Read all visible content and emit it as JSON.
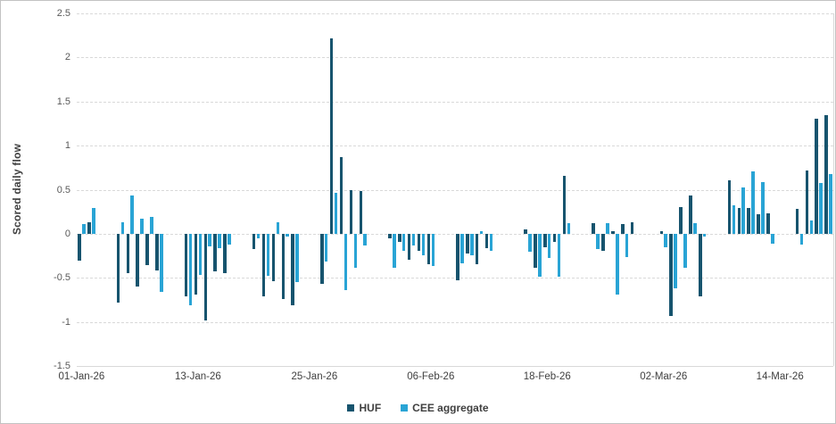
{
  "figure": {
    "y_axis_title": "Scored daily flow",
    "y_tick_labels": [
      "2.5",
      "2",
      "1.5",
      "1",
      "0.5",
      "0",
      "-0.5",
      "-1",
      "-1.5"
    ],
    "x_tick_labels": [
      "01-Jan-26",
      "13-Jan-26",
      "25-Jan-26",
      "06-Feb-26",
      "18-Feb-26",
      "02-Mar-26",
      "14-Mar-26"
    ],
    "colors": {
      "huf": "#17546E",
      "cee": "#29A4D5",
      "gridline": "#D9D9D9",
      "y_tick_text": "#595959",
      "x_tick_text": "#404040",
      "background": "#FFFFFF"
    }
  },
  "chart_data": {
    "type": "bar",
    "title": "",
    "xlabel": "",
    "ylabel": "Scored daily flow",
    "ylim": [
      -1.5,
      2.5
    ],
    "gridline_step": 0.5,
    "grid": "horizontal-dashed",
    "legend_position": "bottom-center",
    "x_tick_labels": [
      "01-Jan-26",
      "13-Jan-26",
      "25-Jan-26",
      "06-Feb-26",
      "18-Feb-26",
      "02-Mar-26",
      "14-Mar-26"
    ],
    "categories": [
      "01-Jan-26",
      "02-Jan-26",
      "05-Jan-26",
      "06-Jan-26",
      "07-Jan-26",
      "08-Jan-26",
      "09-Jan-26",
      "12-Jan-26",
      "13-Jan-26",
      "14-Jan-26",
      "15-Jan-26",
      "16-Jan-26",
      "19-Jan-26",
      "20-Jan-26",
      "21-Jan-26",
      "22-Jan-26",
      "23-Jan-26",
      "26-Jan-26",
      "27-Jan-26",
      "28-Jan-26",
      "29-Jan-26",
      "30-Jan-26",
      "02-Feb-26",
      "03-Feb-26",
      "04-Feb-26",
      "05-Feb-26",
      "06-Feb-26",
      "09-Feb-26",
      "10-Feb-26",
      "11-Feb-26",
      "12-Feb-26",
      "13-Feb-26",
      "16-Feb-26",
      "17-Feb-26",
      "18-Feb-26",
      "19-Feb-26",
      "20-Feb-26",
      "23-Feb-26",
      "24-Feb-26",
      "25-Feb-26",
      "26-Feb-26",
      "27-Feb-26",
      "02-Mar-26",
      "03-Mar-26",
      "04-Mar-26",
      "05-Mar-26",
      "06-Mar-26",
      "09-Mar-26",
      "10-Mar-26",
      "11-Mar-26",
      "12-Mar-26",
      "13-Mar-26",
      "16-Mar-26",
      "17-Mar-26",
      "18-Mar-26",
      "19-Mar-26"
    ],
    "series": [
      {
        "name": "HUF",
        "color": "#17546E",
        "values": [
          -0.31,
          0.13,
          -0.78,
          -0.45,
          -0.6,
          -0.36,
          -0.42,
          -0.71,
          -0.69,
          -0.98,
          -0.43,
          -0.45,
          -0.17,
          -0.71,
          -0.54,
          -0.74,
          -0.81,
          -0.57,
          2.22,
          0.87,
          0.5,
          0.48,
          -0.05,
          -0.09,
          -0.29,
          -0.19,
          -0.35,
          -0.53,
          -0.22,
          -0.35,
          -0.16,
          0,
          0.05,
          -0.39,
          -0.15,
          -0.09,
          0.66,
          0.12,
          -0.19,
          0.03,
          0.11,
          0.13,
          0.03,
          -0.93,
          0.3,
          0.43,
          -0.71,
          0.61,
          0.29,
          0.29,
          0.22,
          0.23,
          0.28,
          0.72,
          1.31,
          1.35
        ]
      },
      {
        "name": "CEE aggregate",
        "color": "#29A4D5",
        "values": [
          0.11,
          0.29,
          0.13,
          0.43,
          0.17,
          0.19,
          -0.66,
          -0.81,
          -0.47,
          -0.14,
          -0.16,
          -0.12,
          -0.05,
          -0.48,
          0.13,
          -0.03,
          -0.55,
          -0.32,
          0.46,
          -0.64,
          -0.39,
          -0.13,
          -0.39,
          -0.19,
          -0.13,
          -0.24,
          -0.37,
          -0.34,
          -0.24,
          0.03,
          -0.19,
          0,
          -0.2,
          -0.49,
          -0.27,
          -0.49,
          0.12,
          -0.17,
          0.12,
          -0.69,
          -0.26,
          0,
          -0.15,
          -0.62,
          -0.39,
          0.12,
          -0.03,
          0.32,
          0.53,
          0.71,
          0.59,
          -0.11,
          -0.12,
          0.15,
          0.58,
          0.68
        ]
      }
    ]
  }
}
